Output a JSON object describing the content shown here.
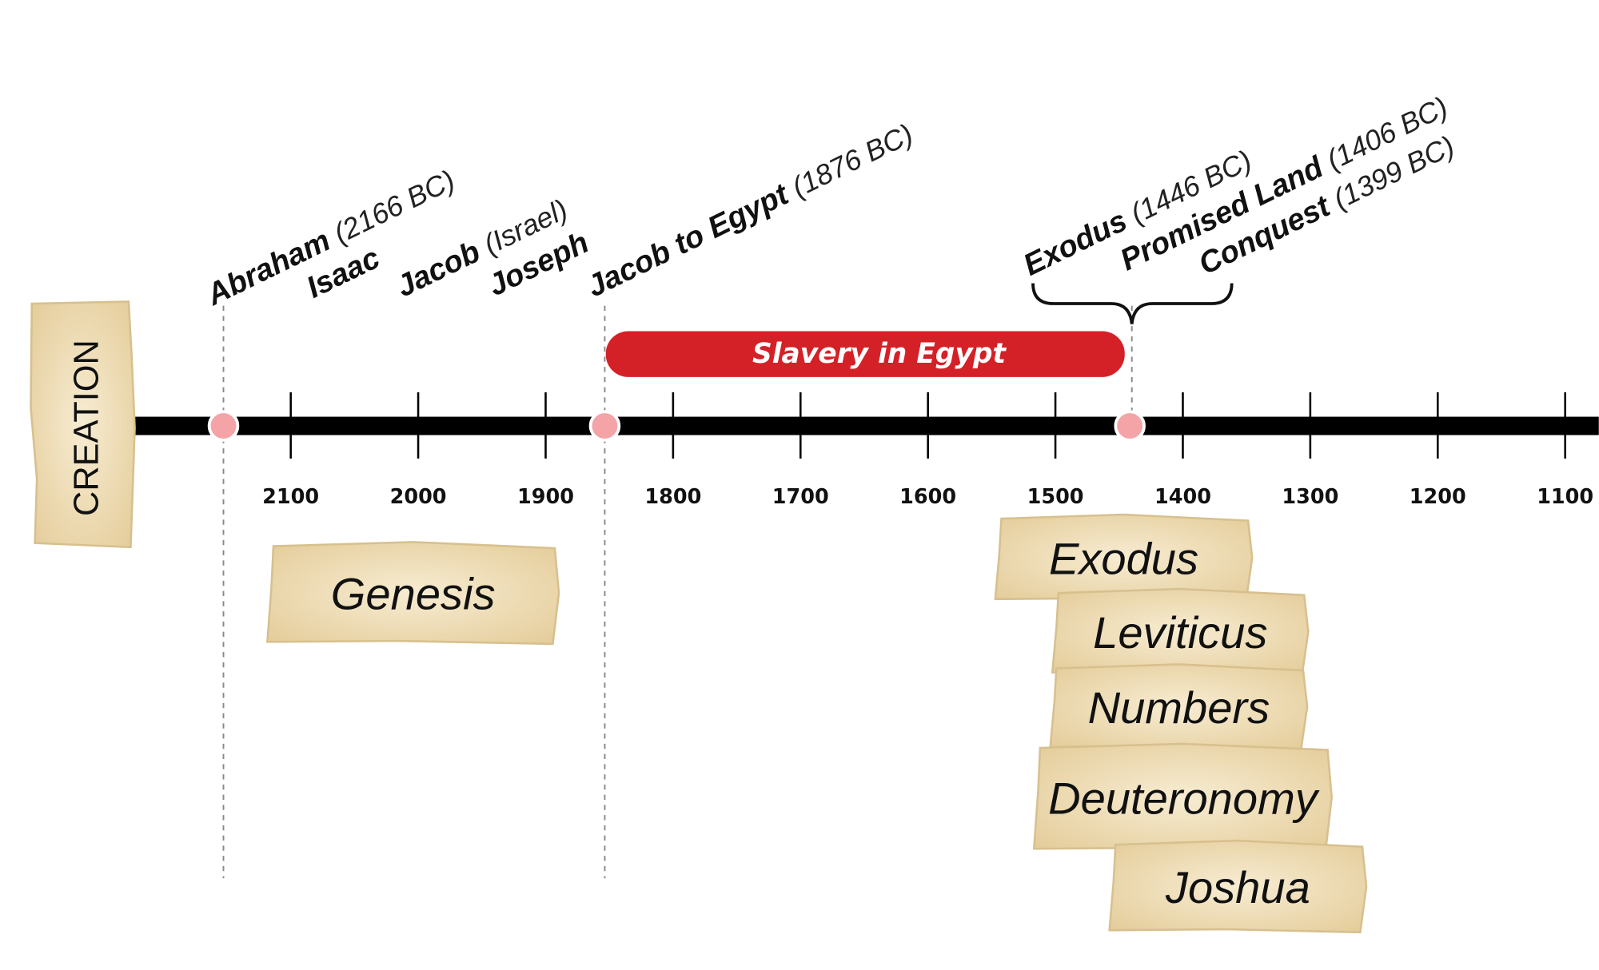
{
  "creation": "CREATION",
  "period": {
    "label": "Slavery in Egypt"
  },
  "ticks": [
    "2100",
    "2000",
    "1900",
    "1800",
    "1700",
    "1600",
    "1500",
    "1400",
    "1300",
    "1200",
    "1100"
  ],
  "events": [
    {
      "name": "Abraham",
      "detail": "(2166 BC)"
    },
    {
      "name": "Isaac"
    },
    {
      "name": "Jacob",
      "detail": "(Israel)"
    },
    {
      "name": "Joseph"
    },
    {
      "name": "Jacob to Egypt",
      "detail": "(1876 BC)"
    },
    {
      "name": "Exodus",
      "detail": "(1446 BC)"
    },
    {
      "name": "Promised Land",
      "detail": "(1406 BC)"
    },
    {
      "name": "Conquest",
      "detail": "(1399 BC)"
    }
  ],
  "books": [
    "Genesis",
    "Exodus",
    "Leviticus",
    "Numbers",
    "Deuteronomy",
    "Joshua"
  ]
}
